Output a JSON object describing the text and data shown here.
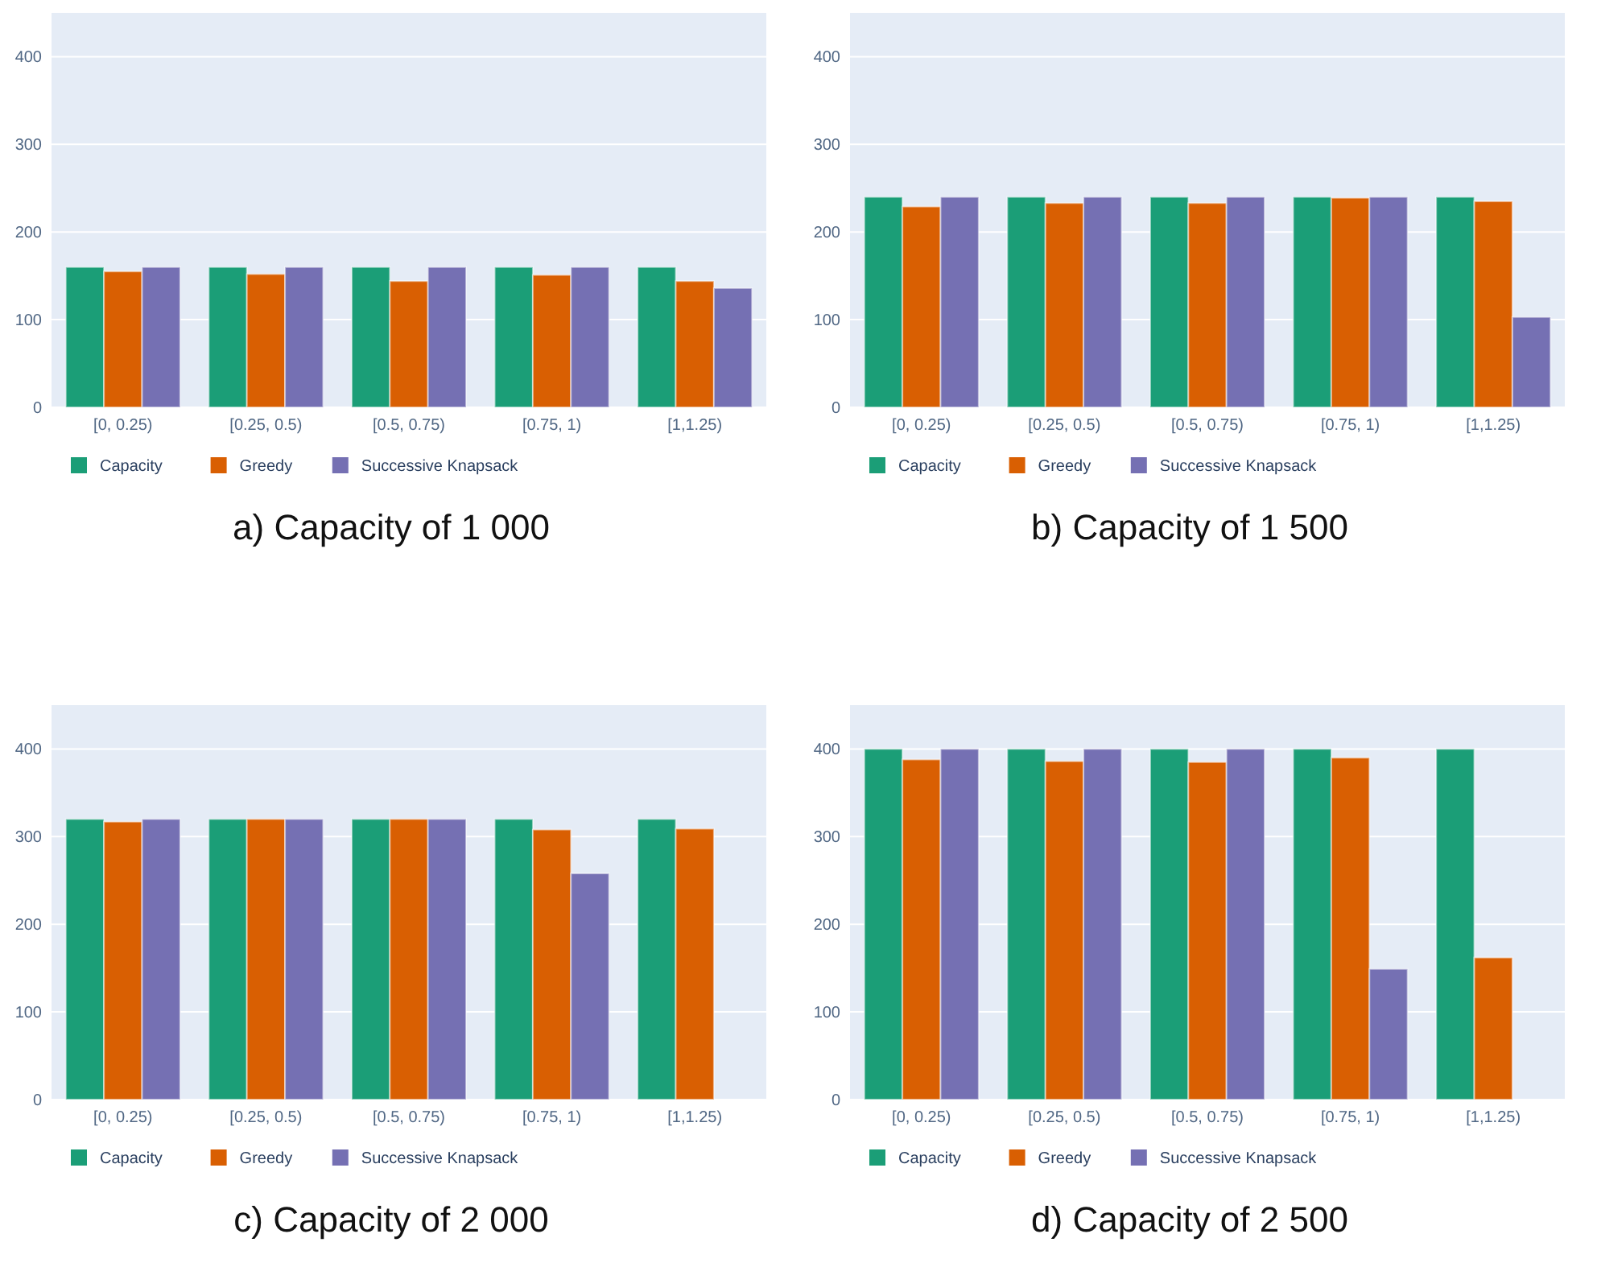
{
  "chart_data": [
    {
      "type": "bar",
      "title": "a) Capacity of 1 000",
      "categories": [
        "[0, 0.25)",
        "[0.25, 0.5)",
        "[0.5, 0.75)",
        "[0.75, 1)",
        "[1,1.25)"
      ],
      "series": [
        {
          "name": "Capacity",
          "color": "#1b9e77",
          "values": [
            160,
            160,
            160,
            160,
            160
          ]
        },
        {
          "name": "Greedy",
          "color": "#d95f02",
          "values": [
            155,
            152,
            144,
            151,
            144
          ]
        },
        {
          "name": "Successive Knapsack",
          "color": "#7570b3",
          "values": [
            160,
            160,
            160,
            160,
            136
          ]
        }
      ],
      "ylim": [
        0,
        450
      ],
      "yticks": [
        0,
        100,
        200,
        300,
        400
      ],
      "grid": "y",
      "legend": "bottom left"
    },
    {
      "type": "bar",
      "title": "b) Capacity of 1 500",
      "categories": [
        "[0, 0.25)",
        "[0.25, 0.5)",
        "[0.5, 0.75)",
        "[0.75, 1)",
        "[1,1.25)"
      ],
      "series": [
        {
          "name": "Capacity",
          "color": "#1b9e77",
          "values": [
            240,
            240,
            240,
            240,
            240
          ]
        },
        {
          "name": "Greedy",
          "color": "#d95f02",
          "values": [
            229,
            233,
            233,
            239,
            235
          ]
        },
        {
          "name": "Successive Knapsack",
          "color": "#7570b3",
          "values": [
            240,
            240,
            240,
            240,
            103
          ]
        }
      ],
      "ylim": [
        0,
        450
      ],
      "yticks": [
        0,
        100,
        200,
        300,
        400
      ],
      "grid": "y",
      "legend": "bottom left"
    },
    {
      "type": "bar",
      "title": "c) Capacity of 2 000",
      "categories": [
        "[0, 0.25)",
        "[0.25, 0.5)",
        "[0.5, 0.75)",
        "[0.75, 1)",
        "[1,1.25)"
      ],
      "series": [
        {
          "name": "Capacity",
          "color": "#1b9e77",
          "values": [
            320,
            320,
            320,
            320,
            320
          ]
        },
        {
          "name": "Greedy",
          "color": "#d95f02",
          "values": [
            317,
            320,
            320,
            308,
            309
          ]
        },
        {
          "name": "Successive Knapsack",
          "color": "#7570b3",
          "values": [
            320,
            320,
            320,
            258,
            null
          ]
        }
      ],
      "ylim": [
        0,
        450
      ],
      "yticks": [
        0,
        100,
        200,
        300,
        400
      ],
      "grid": "y",
      "legend": "bottom left"
    },
    {
      "type": "bar",
      "title": "d) Capacity of 2 500",
      "categories": [
        "[0, 0.25)",
        "[0.25, 0.5)",
        "[0.5, 0.75)",
        "[0.75, 1)",
        "[1,1.25)"
      ],
      "series": [
        {
          "name": "Capacity",
          "color": "#1b9e77",
          "values": [
            400,
            400,
            400,
            400,
            400
          ]
        },
        {
          "name": "Greedy",
          "color": "#d95f02",
          "values": [
            388,
            386,
            385,
            390,
            162
          ]
        },
        {
          "name": "Successive Knapsack",
          "color": "#7570b3",
          "values": [
            400,
            400,
            400,
            149,
            null
          ]
        }
      ],
      "ylim": [
        0,
        450
      ],
      "yticks": [
        0,
        100,
        200,
        300,
        400
      ],
      "grid": "y",
      "legend": "bottom left"
    }
  ]
}
